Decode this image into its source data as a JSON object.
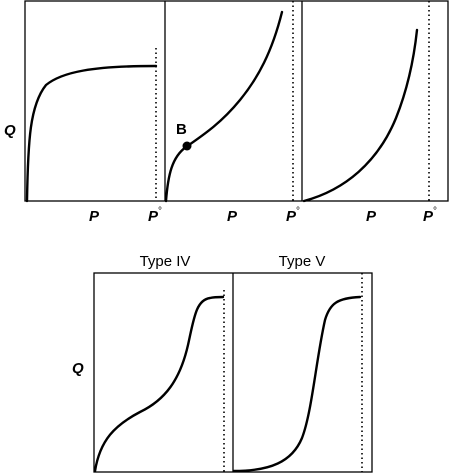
{
  "top_panels": {
    "y_label": "Q",
    "pressure_label": "P",
    "sat_label": "P",
    "sat_superscript": "°",
    "point_label": "B"
  },
  "bottom_panels": {
    "y_label": "Q",
    "type_iv_label": "Type IV",
    "type_v_label": "Type V"
  },
  "colors": {
    "ink": "#000000",
    "background": "#ffffff"
  }
}
